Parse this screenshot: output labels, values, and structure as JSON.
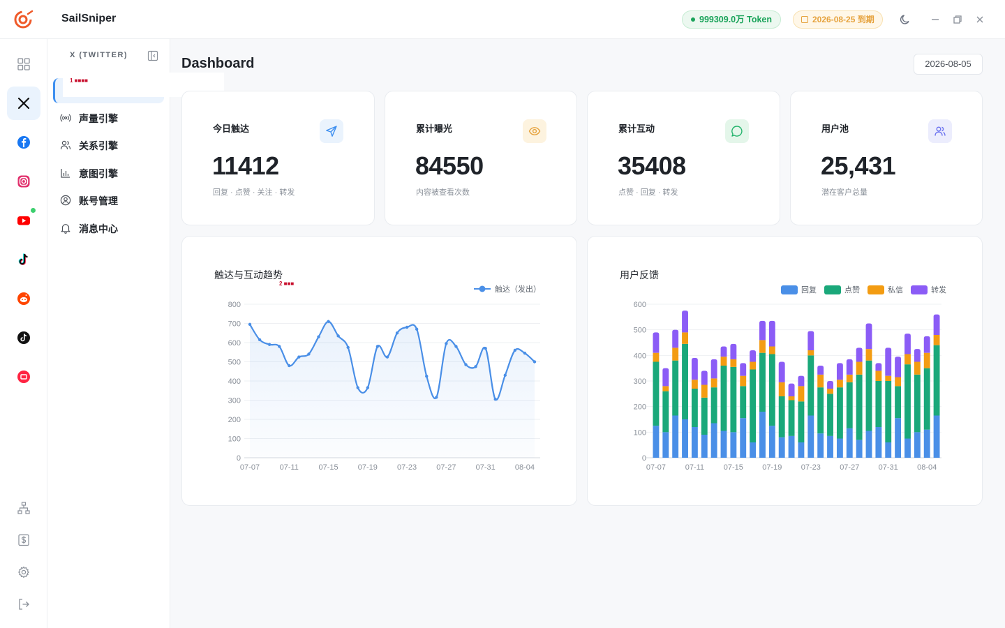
{
  "app": {
    "title": "SailSniper"
  },
  "topbar": {
    "token": "999309.0万 Token",
    "expire": "2026-08-25 到期"
  },
  "sidebar": {
    "header": "X (TWITTER)",
    "items": [
      {
        "label": "声量引擎"
      },
      {
        "label": "关系引擎"
      },
      {
        "label": "意图引擎"
      },
      {
        "label": "账号管理"
      },
      {
        "label": "消息中心"
      }
    ]
  },
  "annotations": {
    "a1": "1 ■■■■",
    "a2": "2 ■■■"
  },
  "main": {
    "title": "Dashboard",
    "date": "2026-08-05"
  },
  "stats": [
    {
      "label": "今日触达",
      "value": "11412",
      "sub": "回复 · 点赞 · 关注 · 转发",
      "icon": "send-icon",
      "color": "#3d8ff0"
    },
    {
      "label": "累计曝光",
      "value": "84550",
      "sub": "内容被查看次数",
      "icon": "eye-icon",
      "color": "#e6a23c"
    },
    {
      "label": "累计互动",
      "value": "35408",
      "sub": "点赞 · 回复 · 转发",
      "icon": "chat-icon",
      "color": "#22b36b"
    },
    {
      "label": "用户池",
      "value": "25,431",
      "sub": "潜在客户总量",
      "icon": "users-icon",
      "color": "#6b72f0"
    }
  ],
  "line_chart": {
    "title": "触达与互动趋势",
    "chart_data": {
      "type": "line",
      "series": [
        {
          "name": "触达（发出）",
          "color": "#4a8fe7",
          "values": [
            695,
            615,
            590,
            580,
            480,
            525,
            540,
            630,
            710,
            635,
            575,
            365,
            365,
            580,
            525,
            650,
            680,
            670,
            425,
            315,
            595,
            580,
            485,
            475,
            570,
            305,
            430,
            560,
            545,
            500
          ]
        }
      ],
      "x_ticks": [
        "07-07",
        "07-11",
        "07-15",
        "07-19",
        "07-23",
        "07-27",
        "07-31",
        "08-04"
      ],
      "ylim": [
        0,
        800
      ],
      "y_ticks": [
        0,
        100,
        200,
        300,
        400,
        500,
        600,
        700,
        800
      ],
      "legend": "top-right"
    }
  },
  "bar_chart": {
    "title": "用户反馈",
    "chart_data": {
      "type": "bar",
      "stacked": true,
      "series": [
        {
          "name": "回复",
          "color": "#4a8fe7",
          "values": [
            125,
            100,
            165,
            150,
            120,
            90,
            135,
            105,
            100,
            155,
            60,
            180,
            125,
            80,
            85,
            60,
            165,
            95,
            85,
            75,
            115,
            70,
            105,
            120,
            60,
            155,
            75,
            100,
            110,
            165
          ]
        },
        {
          "name": "点赞",
          "color": "#1aa87a",
          "values": [
            250,
            160,
            215,
            295,
            150,
            145,
            140,
            255,
            255,
            125,
            285,
            230,
            280,
            160,
            140,
            160,
            235,
            180,
            165,
            200,
            180,
            255,
            275,
            180,
            240,
            125,
            290,
            225,
            240,
            275
          ]
        },
        {
          "name": "私信",
          "color": "#f39c12",
          "values": [
            35,
            20,
            50,
            45,
            35,
            50,
            35,
            35,
            30,
            40,
            30,
            50,
            30,
            55,
            15,
            60,
            20,
            50,
            20,
            30,
            30,
            50,
            45,
            40,
            20,
            35,
            40,
            50,
            60,
            40
          ]
        },
        {
          "name": "转发",
          "color": "#8b5cf6",
          "values": [
            80,
            70,
            70,
            85,
            85,
            55,
            75,
            40,
            60,
            50,
            45,
            75,
            100,
            80,
            50,
            40,
            75,
            35,
            30,
            65,
            60,
            55,
            100,
            30,
            110,
            80,
            80,
            50,
            65,
            80
          ]
        }
      ],
      "x_ticks": [
        "07-07",
        "07-11",
        "07-15",
        "07-19",
        "07-23",
        "07-27",
        "07-31",
        "08-04"
      ],
      "ylim": [
        0,
        600
      ],
      "y_ticks": [
        0,
        100,
        200,
        300,
        400,
        500,
        600
      ],
      "legend": "top-right"
    }
  }
}
